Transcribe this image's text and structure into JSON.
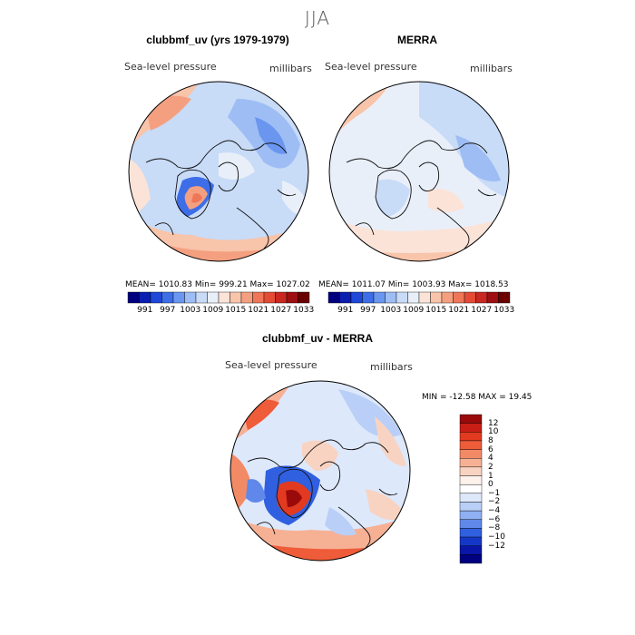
{
  "season": "JJA",
  "panels": {
    "model": {
      "title": "clubbmf_uv (yrs 1979-1979)",
      "variable": "Sea-level pressure",
      "units": "millibars",
      "stats": "MEAN= 1010.83   Min=  999.21   Max= 1027.02"
    },
    "obs": {
      "title": "MERRA",
      "variable": "Sea-level pressure",
      "units": "millibars",
      "stats": "MEAN= 1011.07   Min= 1003.93   Max= 1018.53"
    },
    "diff": {
      "title": "clubbmf_uv - MERRA",
      "variable": "Sea-level pressure",
      "units": "millibars",
      "stats": "MIN = -12.58  MAX =  19.45"
    }
  },
  "colorbar_top": {
    "colors": [
      "#00007f",
      "#0a1fb0",
      "#1f47d8",
      "#3d6ee8",
      "#6a96f0",
      "#9dbdf4",
      "#c8dbf7",
      "#e9eff9",
      "#fbe3d8",
      "#f8c4aa",
      "#f4a080",
      "#ef7658",
      "#e44b34",
      "#c82820",
      "#9e0f12",
      "#6b0000"
    ],
    "labels": [
      "991",
      "997",
      "1003",
      "1009",
      "1015",
      "1021",
      "1027",
      "1033"
    ]
  },
  "colorbar_diff": {
    "colors": [
      "#9a0a0a",
      "#c81e16",
      "#e23a20",
      "#ef5c3a",
      "#f38a66",
      "#f6b195",
      "#f9d3c2",
      "#fdf1ec",
      "#ffffff",
      "#dde8fb",
      "#b9cff7",
      "#8fb0f2",
      "#5f88ea",
      "#3060df",
      "#1537c8",
      "#0a16a8",
      "#000080"
    ],
    "labels": [
      "12",
      "10",
      "8",
      "6",
      "4",
      "2",
      "1",
      "0",
      "−1",
      "−2",
      "−4",
      "−6",
      "−8",
      "−10",
      "−12"
    ]
  }
}
